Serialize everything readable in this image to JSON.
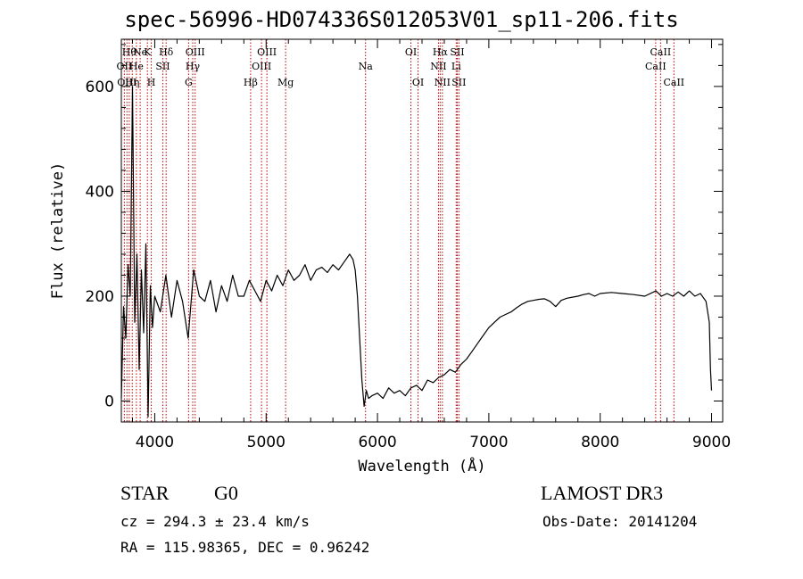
{
  "title": "spec-56996-HD074336S012053V01_sp11-206.fits",
  "footer": {
    "class_label": "STAR",
    "subclass": "G0",
    "survey": "LAMOST DR3",
    "cz": "cz = 294.3 ± 23.4 km/s",
    "obs_date": "Obs-Date: 20141204",
    "radec": "RA = 115.98365, DEC =   0.96242"
  },
  "colors": {
    "spectrum": "#000000",
    "lines": "#c00000",
    "axes": "#000000"
  },
  "chart_data": {
    "type": "line",
    "xlabel": "Wavelength (Å)",
    "ylabel": "Flux (relative)",
    "xlim": [
      3700,
      9100
    ],
    "ylim": [
      -40,
      690
    ],
    "xticks": [
      4000,
      5000,
      6000,
      7000,
      8000,
      9000
    ],
    "yticks": [
      0,
      200,
      400,
      600
    ],
    "line_markers": [
      {
        "wave": 3727,
        "label": "OII",
        "row": 2
      },
      {
        "wave": 3750,
        "label": "OIII",
        "row": 3
      },
      {
        "wave": 3771,
        "label": "Hθ",
        "row": 1
      },
      {
        "wave": 3798,
        "label": "Hη",
        "row": 3
      },
      {
        "wave": 3835,
        "label": "He",
        "row": 2
      },
      {
        "wave": 3869,
        "label": "Ne",
        "row": 1
      },
      {
        "wave": 3934,
        "label": "K",
        "row": 1
      },
      {
        "wave": 3969,
        "label": "H",
        "row": 3
      },
      {
        "wave": 4072,
        "label": "SII",
        "row": 2
      },
      {
        "wave": 4102,
        "label": "Hδ",
        "row": 1
      },
      {
        "wave": 4304,
        "label": "G",
        "row": 3
      },
      {
        "wave": 4341,
        "label": "Hγ",
        "row": 2
      },
      {
        "wave": 4363,
        "label": "OIII",
        "row": 1
      },
      {
        "wave": 4861,
        "label": "Hβ",
        "row": 3
      },
      {
        "wave": 4959,
        "label": "OIII",
        "row": 2
      },
      {
        "wave": 5007,
        "label": "OIII",
        "row": 1
      },
      {
        "wave": 5175,
        "label": "Mg",
        "row": 3
      },
      {
        "wave": 5893,
        "label": "Na",
        "row": 2
      },
      {
        "wave": 6300,
        "label": "OI",
        "row": 1
      },
      {
        "wave": 6364,
        "label": "OI",
        "row": 3
      },
      {
        "wave": 6548,
        "label": "NII",
        "row": 2
      },
      {
        "wave": 6563,
        "label": "Hα",
        "row": 1
      },
      {
        "wave": 6583,
        "label": "NII",
        "row": 3
      },
      {
        "wave": 6707,
        "label": "Li",
        "row": 2
      },
      {
        "wave": 6716,
        "label": "SII",
        "row": 1
      },
      {
        "wave": 6731,
        "label": "SII",
        "row": 3
      },
      {
        "wave": 8498,
        "label": "CaII",
        "row": 2
      },
      {
        "wave": 8542,
        "label": "CaII",
        "row": 1
      },
      {
        "wave": 8662,
        "label": "CaII",
        "row": 3
      }
    ],
    "series": [
      {
        "x": [
          3700,
          3720,
          3740,
          3760,
          3780,
          3800,
          3820,
          3840,
          3860,
          3880,
          3900,
          3920,
          3940,
          3960,
          3980,
          4000,
          4050,
          4100,
          4150,
          4200,
          4250,
          4300,
          4350,
          4400,
          4450,
          4500,
          4550,
          4600,
          4650,
          4700,
          4750,
          4800,
          4850,
          4900,
          4950,
          5000,
          5050,
          5100,
          5150,
          5200,
          5250,
          5300,
          5350,
          5400,
          5450,
          5500,
          5550,
          5600,
          5650,
          5700,
          5750,
          5780,
          5800,
          5820,
          5840,
          5860,
          5880,
          5900,
          5920,
          5950,
          6000,
          6050,
          6100,
          6150,
          6200,
          6250,
          6300,
          6350,
          6400,
          6450,
          6500,
          6550,
          6600,
          6650,
          6700,
          6750,
          6800,
          6850,
          6900,
          6950,
          7000,
          7050,
          7100,
          7150,
          7200,
          7250,
          7300,
          7350,
          7400,
          7450,
          7500,
          7550,
          7600,
          7650,
          7700,
          7750,
          7800,
          7850,
          7900,
          7950,
          8000,
          8100,
          8200,
          8300,
          8400,
          8500,
          8550,
          8600,
          8650,
          8700,
          8750,
          8800,
          8850,
          8900,
          8950,
          8980,
          8990,
          9000
        ],
        "y": [
          5,
          180,
          120,
          260,
          200,
          600,
          150,
          280,
          60,
          250,
          130,
          300,
          -30,
          220,
          140,
          200,
          170,
          240,
          160,
          230,
          190,
          120,
          250,
          200,
          190,
          230,
          170,
          220,
          190,
          240,
          200,
          200,
          230,
          210,
          190,
          230,
          210,
          240,
          220,
          250,
          230,
          240,
          260,
          230,
          250,
          255,
          245,
          260,
          250,
          265,
          280,
          270,
          250,
          200,
          120,
          40,
          -10,
          20,
          5,
          10,
          15,
          5,
          25,
          15,
          20,
          10,
          25,
          30,
          20,
          40,
          35,
          45,
          50,
          60,
          55,
          70,
          80,
          95,
          110,
          125,
          140,
          150,
          160,
          165,
          170,
          178,
          185,
          190,
          192,
          194,
          195,
          190,
          180,
          192,
          196,
          198,
          200,
          203,
          205,
          200,
          205,
          207,
          205,
          203,
          200,
          210,
          200,
          205,
          200,
          208,
          200,
          210,
          200,
          205,
          190,
          150,
          60,
          20
        ]
      }
    ]
  }
}
